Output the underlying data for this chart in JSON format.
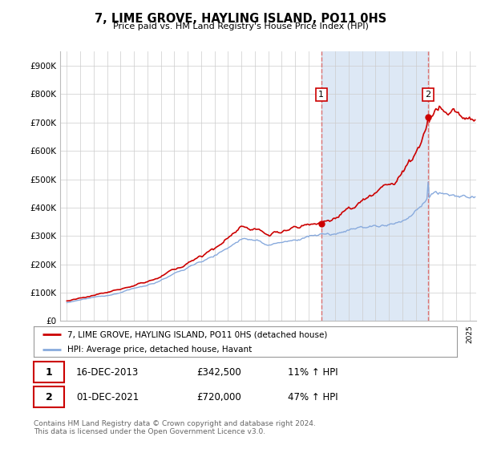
{
  "title": "7, LIME GROVE, HAYLING ISLAND, PO11 0HS",
  "subtitle": "Price paid vs. HM Land Registry's House Price Index (HPI)",
  "background_color": "#ffffff",
  "plot_bg_color": "#ffffff",
  "grid_color": "#cccccc",
  "line1_color": "#cc0000",
  "line2_color": "#88aadd",
  "shaded_color": "#dde8f5",
  "dashed_color": "#dd6666",
  "purchase1_year": 2013.96,
  "purchase1_price": 342500,
  "purchase2_year": 2021.92,
  "purchase2_price": 720000,
  "annotation1": "16-DEC-2013",
  "annotation1_price": "£342,500",
  "annotation1_hpi": "11% ↑ HPI",
  "annotation2": "01-DEC-2021",
  "annotation2_price": "£720,000",
  "annotation2_hpi": "47% ↑ HPI",
  "legend1_label": "7, LIME GROVE, HAYLING ISLAND, PO11 0HS (detached house)",
  "legend2_label": "HPI: Average price, detached house, Havant",
  "footer": "Contains HM Land Registry data © Crown copyright and database right 2024.\nThis data is licensed under the Open Government Licence v3.0.",
  "ylim": [
    0,
    950000
  ],
  "yticks": [
    0,
    100000,
    200000,
    300000,
    400000,
    500000,
    600000,
    700000,
    800000,
    900000
  ],
  "ytick_labels": [
    "£0",
    "£100K",
    "£200K",
    "£300K",
    "£400K",
    "£500K",
    "£600K",
    "£700K",
    "£800K",
    "£900K"
  ],
  "xstart": 1995,
  "xend": 2025
}
